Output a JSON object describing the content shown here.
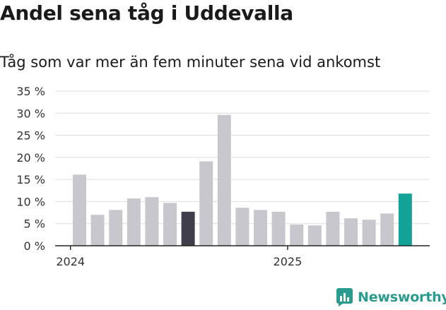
{
  "header": {
    "title": "Andel sena tåg i Uddevalla",
    "subtitle": "Tåg som var mer än fem minuter sena vid ankomst"
  },
  "branding": {
    "name": "Newsworthy",
    "logo_icon": "bar-chart-icon",
    "color": "#2a9b8f"
  },
  "colors": {
    "bar_default": "#c8c7ce",
    "bar_highlight_dark": "#3f3e4a",
    "bar_highlight_latest": "#12a296",
    "grid": "#dddddd",
    "axis": "#222222"
  },
  "chart_data": {
    "type": "bar",
    "title": "Andel sena tåg i Uddevalla",
    "subtitle": "Tåg som var mer än fem minuter sena vid ankomst",
    "ylim": [
      0,
      35
    ],
    "y_ticks": [
      0,
      5,
      10,
      15,
      20,
      25,
      30,
      35
    ],
    "y_tick_labels": [
      "0 %",
      "5 %",
      "10 %",
      "15 %",
      "20 %",
      "25 %",
      "30 %",
      "35 %"
    ],
    "x_tick_labels": [
      {
        "label": "2024",
        "at_index": -0.5
      },
      {
        "label": "2025",
        "at_index": 11.5
      }
    ],
    "grid": true,
    "values": [
      16.1,
      7.0,
      8.1,
      10.7,
      11.0,
      9.7,
      7.7,
      19.1,
      29.6,
      8.6,
      8.1,
      7.7,
      4.8,
      4.6,
      7.7,
      6.2,
      5.9,
      7.3,
      11.8
    ],
    "highlight": {
      "6": "bar_highlight_dark",
      "18": "bar_highlight_latest"
    }
  }
}
